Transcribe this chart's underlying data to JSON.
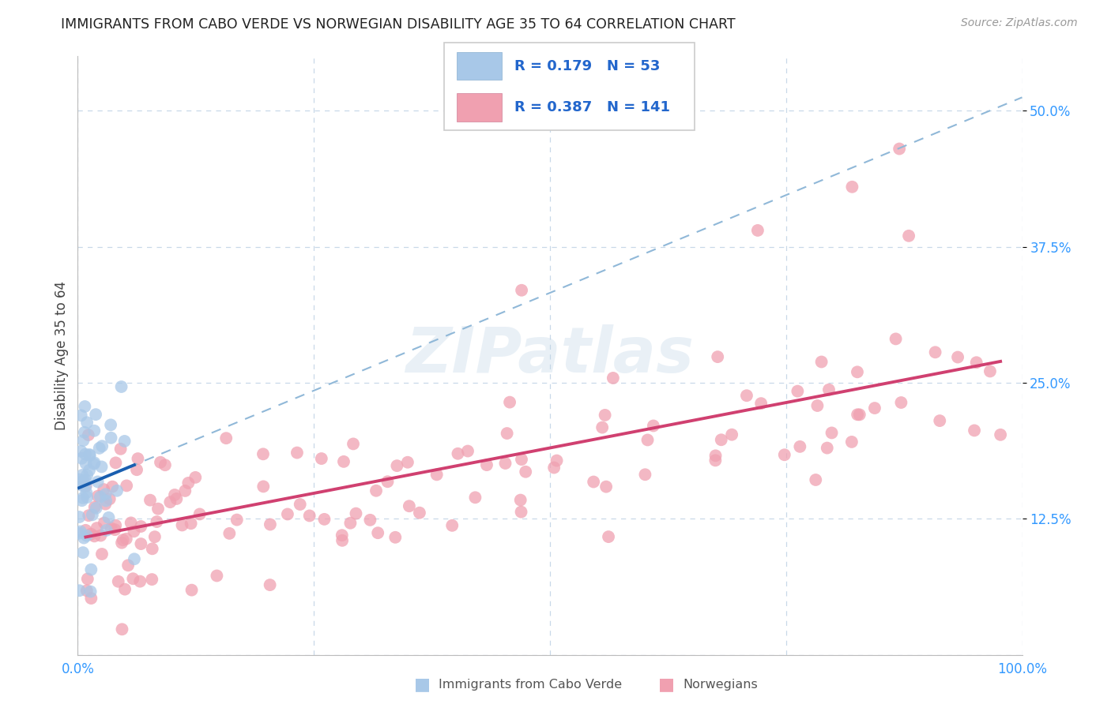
{
  "title": "IMMIGRANTS FROM CABO VERDE VS NORWEGIAN DISABILITY AGE 35 TO 64 CORRELATION CHART",
  "source": "Source: ZipAtlas.com",
  "ylabel": "Disability Age 35 to 64",
  "x_min": 0.0,
  "x_max": 1.0,
  "y_min": 0.0,
  "y_max": 0.55,
  "x_ticks": [
    0.0,
    0.25,
    0.5,
    0.75,
    1.0
  ],
  "x_tick_labels": [
    "0.0%",
    "",
    "",
    "",
    "100.0%"
  ],
  "y_ticks": [
    0.125,
    0.25,
    0.375,
    0.5
  ],
  "y_tick_labels": [
    "12.5%",
    "25.0%",
    "37.5%",
    "50.0%"
  ],
  "cabo_verde_R": 0.179,
  "cabo_verde_N": 53,
  "norwegian_R": 0.387,
  "norwegian_N": 141,
  "cabo_verde_color": "#a8c8e8",
  "cabo_verde_line_color": "#1a5fb0",
  "norwegian_color": "#f0a0b0",
  "norwegian_line_color": "#d04070",
  "dashed_line_color": "#90b8d8",
  "background_color": "#ffffff",
  "grid_color": "#c8d8e8",
  "watermark": "ZIPatlas",
  "legend_R1": "R = 0.179",
  "legend_N1": "N = 53",
  "legend_R2": "R = 0.387",
  "legend_N2": "N = 141",
  "legend_label1": "Immigrants from Cabo Verde",
  "legend_label2": "Norwegians"
}
